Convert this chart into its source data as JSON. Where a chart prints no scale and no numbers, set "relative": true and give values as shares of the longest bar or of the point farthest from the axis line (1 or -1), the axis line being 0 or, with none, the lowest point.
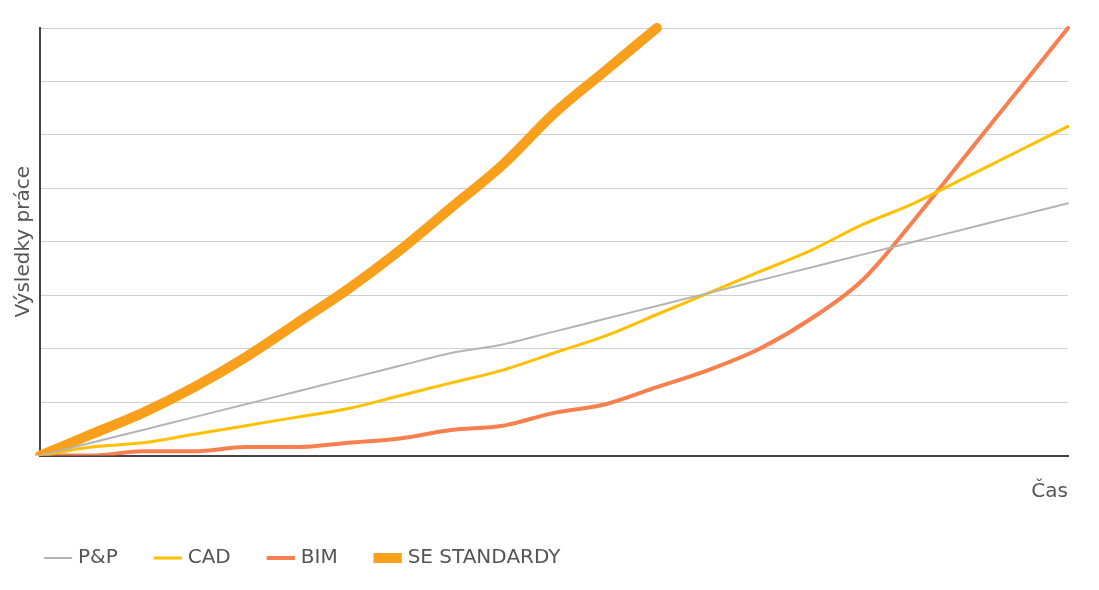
{
  "chart_data": {
    "type": "line",
    "relative": true,
    "xlabel": "Čas",
    "ylabel": "Výsledky práce",
    "grid": "y",
    "legend": "bottom",
    "marker": "none",
    "line_style": "solid",
    "categories": [
      null,
      null,
      null,
      null,
      null,
      null,
      null,
      null,
      null,
      null,
      null,
      null,
      null,
      null,
      null,
      null,
      null,
      null,
      null,
      null,
      null
    ],
    "series": [
      {
        "name": "P&P",
        "color": "#b4b4b4",
        "values": [
          0,
          0.03,
          0.06,
          0.09,
          0.12,
          0.15,
          0.18,
          0.21,
          0.24,
          0.26,
          0.29,
          0.32,
          0.35,
          0.38,
          0.41,
          0.44,
          0.47,
          0.5,
          0.53,
          0.56,
          0.59
        ]
      },
      {
        "name": "CAD",
        "color": "#ffc000",
        "values": [
          0,
          0.02,
          0.03,
          0.05,
          0.07,
          0.09,
          0.11,
          0.14,
          0.17,
          0.2,
          0.24,
          0.28,
          0.33,
          0.38,
          0.43,
          0.48,
          0.54,
          0.59,
          0.65,
          0.71,
          0.77
        ]
      },
      {
        "name": "BIM",
        "color": "#f7804e",
        "values": [
          0,
          0,
          0.01,
          0.01,
          0.02,
          0.02,
          0.03,
          0.04,
          0.06,
          0.07,
          0.1,
          0.12,
          0.16,
          0.2,
          0.25,
          0.32,
          0.41,
          0.55,
          0.7,
          0.85,
          1
        ]
      },
      {
        "name": "SE STANDARDY",
        "color": "#f8a01c",
        "values": [
          0,
          0.05,
          0.1,
          0.16,
          0.23,
          0.31,
          0.39,
          0.48,
          0.58,
          0.68,
          0.8,
          0.9,
          1,
          null,
          null,
          null,
          null,
          null,
          null,
          null,
          null
        ]
      }
    ]
  }
}
